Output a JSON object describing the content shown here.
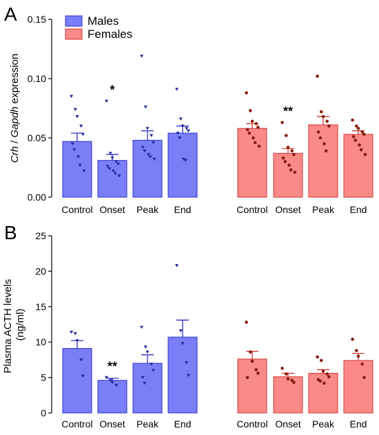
{
  "colors": {
    "males_fill": "#7b7ff7",
    "males_stroke": "#2b2fcc",
    "males_point": "#1f2a9a",
    "females_fill": "#f98a88",
    "females_stroke": "#d2342f",
    "females_point": "#8b1c0f"
  },
  "legend": {
    "placement": "top",
    "males_label": "Males",
    "females_label": "Females"
  },
  "chart_data": [
    {
      "panel": "A",
      "type": "bar",
      "ylabel": "Crh / Gapdh expression",
      "ylim": [
        0,
        0.15
      ],
      "yticks": [
        "0.00",
        "0.05",
        "0.10",
        "0.15"
      ],
      "groups": [
        {
          "name": "Males",
          "categories": [
            "Control",
            "Onset",
            "Peak",
            "End"
          ],
          "values": [
            0.047,
            0.031,
            0.048,
            0.054
          ],
          "sem": [
            0.007,
            0.005,
            0.008,
            0.006
          ],
          "annotations": [
            "",
            "*",
            "",
            ""
          ],
          "points": [
            [
              0.085,
              0.074,
              0.068,
              0.06,
              0.053,
              0.045,
              0.04,
              0.034,
              0.027,
              0.022
            ],
            [
              0.081,
              0.037,
              0.033,
              0.03,
              0.028,
              0.026,
              0.024,
              0.022,
              0.02,
              0.018
            ],
            [
              0.119,
              0.076,
              0.058,
              0.052,
              0.046,
              0.042,
              0.039,
              0.036,
              0.034,
              0.032
            ],
            [
              0.091,
              0.066,
              0.06,
              0.058,
              0.056,
              0.054,
              0.05,
              0.032,
              0.031
            ]
          ]
        },
        {
          "name": "Females",
          "categories": [
            "Control",
            "Onset",
            "Peak",
            "End"
          ],
          "values": [
            0.058,
            0.037,
            0.061,
            0.053
          ],
          "sem": [
            0.004,
            0.004,
            0.007,
            0.003
          ],
          "annotations": [
            "",
            "**",
            "",
            ""
          ],
          "points": [
            [
              0.088,
              0.073,
              0.064,
              0.062,
              0.059,
              0.057,
              0.054,
              0.05,
              0.046,
              0.043
            ],
            [
              0.063,
              0.052,
              0.042,
              0.039,
              0.036,
              0.033,
              0.03,
              0.027,
              0.023,
              0.021
            ],
            [
              0.102,
              0.072,
              0.068,
              0.064,
              0.06,
              0.055,
              0.05,
              0.045,
              0.039
            ],
            [
              0.065,
              0.06,
              0.058,
              0.055,
              0.053,
              0.051,
              0.048,
              0.044,
              0.04,
              0.036
            ]
          ]
        }
      ]
    },
    {
      "panel": "B",
      "type": "bar",
      "ylabel": "Plasma ACTH levels\n(ng/ml)",
      "ylim": [
        0,
        25
      ],
      "yticks": [
        "0",
        "5",
        "10",
        "15",
        "20",
        "25"
      ],
      "groups": [
        {
          "name": "Males",
          "categories": [
            "Control",
            "Onset",
            "Peak",
            "End"
          ],
          "values": [
            9.1,
            4.6,
            7.0,
            10.7
          ],
          "sem": [
            1.1,
            0.3,
            1.2,
            2.4
          ],
          "annotations": [
            "",
            "**",
            "",
            ""
          ],
          "points": [
            [
              11.4,
              11.2,
              10.2,
              7.5,
              5.2
            ],
            [
              5.0,
              4.6,
              4.3,
              3.9
            ],
            [
              12.1,
              9.3,
              8.6,
              6.9,
              6.0,
              5.0,
              4.2
            ],
            [
              20.8,
              11.6,
              9.8,
              7.1,
              5.3
            ]
          ]
        },
        {
          "name": "Females",
          "categories": [
            "Control",
            "Onset",
            "Peak",
            "End"
          ],
          "values": [
            7.6,
            5.1,
            5.6,
            7.4
          ],
          "sem": [
            1.1,
            0.5,
            0.5,
            1.0
          ],
          "annotations": [
            "",
            "",
            "",
            ""
          ],
          "points": [
            [
              12.8,
              8.6,
              7.3,
              6.1,
              5.6,
              5.0
            ],
            [
              6.3,
              5.5,
              4.8,
              4.6,
              4.3
            ],
            [
              7.9,
              7.4,
              5.9,
              5.5,
              5.1,
              4.7,
              4.5,
              4.2
            ],
            [
              10.4,
              8.8,
              8.0,
              6.9,
              5.0
            ]
          ]
        }
      ]
    }
  ]
}
